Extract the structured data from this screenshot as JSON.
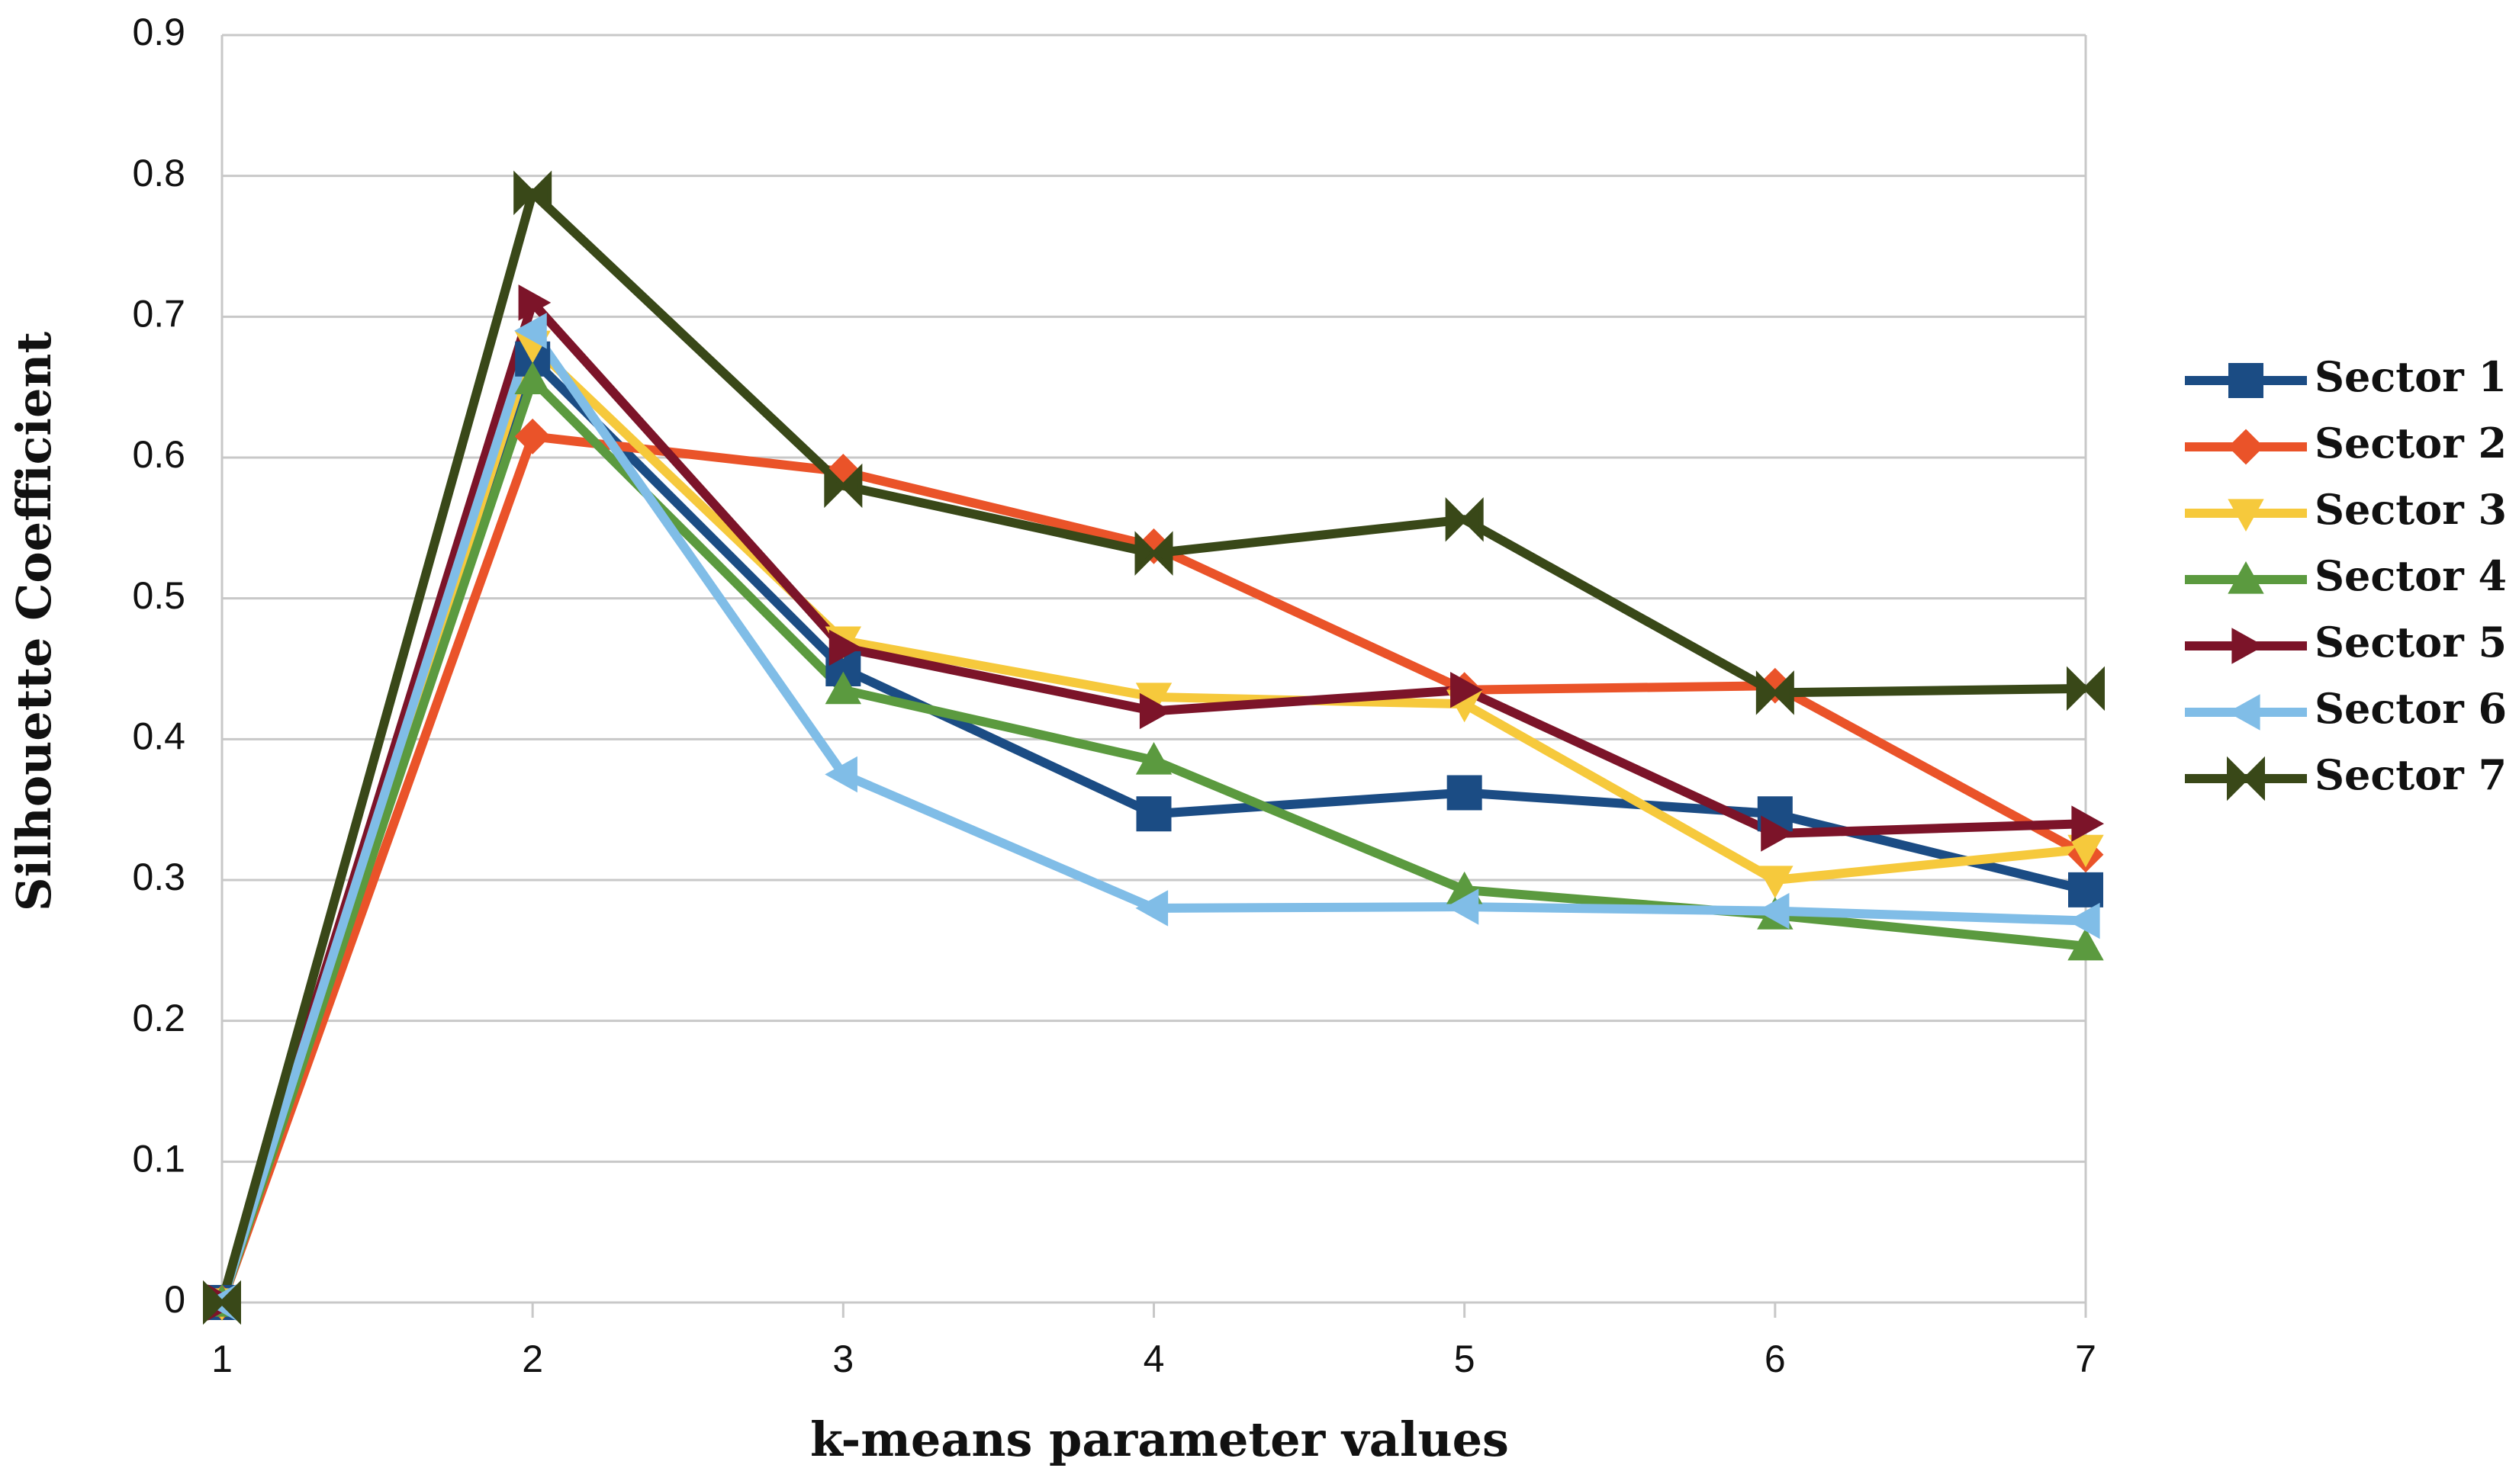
{
  "chart_data": {
    "type": "line",
    "xlabel": "k-means parameter values",
    "ylabel": "Silhouette Coefficient",
    "x": [
      1,
      2,
      3,
      4,
      5,
      6,
      7
    ],
    "xlim": [
      1,
      7
    ],
    "xticks": [
      1,
      2,
      3,
      4,
      5,
      6,
      7
    ],
    "ylim": [
      0,
      0.9
    ],
    "yticks": [
      0,
      0.1,
      0.2,
      0.3,
      0.4,
      0.5,
      0.6,
      0.7,
      0.8,
      0.9
    ],
    "grid": true,
    "legend": "right",
    "series": [
      {
        "name": "Sector 1",
        "color": "#1b4c84",
        "marker": "square",
        "values": [
          0,
          0.67,
          0.45,
          0.347,
          0.362,
          0.347,
          0.293
        ]
      },
      {
        "name": "Sector 2",
        "color": "#ea5329",
        "marker": "diamond",
        "values": [
          0,
          0.615,
          0.59,
          0.537,
          0.435,
          0.438,
          0.318
        ]
      },
      {
        "name": "Sector 3",
        "color": "#f6c93c",
        "marker": "triangle-down",
        "values": [
          0,
          0.68,
          0.47,
          0.43,
          0.425,
          0.3,
          0.322
        ]
      },
      {
        "name": "Sector 4",
        "color": "#5b9a3f",
        "marker": "triangle-up",
        "values": [
          0,
          0.655,
          0.435,
          0.385,
          0.293,
          0.275,
          0.253
        ]
      },
      {
        "name": "Sector 5",
        "color": "#7c1429",
        "marker": "triangle-right",
        "values": [
          0,
          0.71,
          0.465,
          0.42,
          0.435,
          0.333,
          0.34
        ]
      },
      {
        "name": "Sector 6",
        "color": "#80bde7",
        "marker": "triangle-left",
        "values": [
          0,
          0.69,
          0.375,
          0.28,
          0.281,
          0.278,
          0.271
        ]
      },
      {
        "name": "Sector 7",
        "color": "#394818",
        "marker": "bowtie",
        "values": [
          0,
          0.788,
          0.58,
          0.532,
          0.556,
          0.433,
          0.436
        ]
      }
    ]
  }
}
